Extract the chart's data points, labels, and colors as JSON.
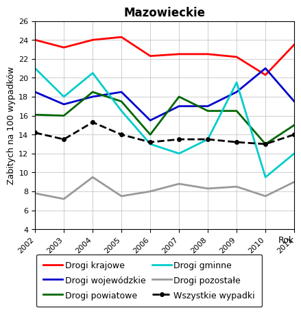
{
  "title": "Mazowieckie",
  "xlabel": "Rok",
  "ylabel": "Zabitych na 100 wypadków",
  "years": [
    2002,
    2003,
    2004,
    2005,
    2006,
    2007,
    2008,
    2009,
    2010,
    2011
  ],
  "series": {
    "Drogi krajowe": {
      "values": [
        24.0,
        23.2,
        24.0,
        24.3,
        22.3,
        22.5,
        22.5,
        22.2,
        20.3,
        23.5
      ],
      "color": "#ff0000",
      "linestyle": "-",
      "linewidth": 2.0,
      "marker": null
    },
    "Drogi wojewódzkie": {
      "values": [
        18.5,
        17.2,
        18.0,
        18.5,
        15.5,
        17.0,
        17.0,
        18.5,
        21.0,
        17.5
      ],
      "color": "#0000cc",
      "linestyle": "-",
      "linewidth": 2.0,
      "marker": null
    },
    "Drogi powiatowe": {
      "values": [
        16.1,
        16.0,
        18.5,
        17.5,
        14.0,
        18.0,
        16.5,
        16.5,
        13.0,
        15.0
      ],
      "color": "#006600",
      "linestyle": "-",
      "linewidth": 2.0,
      "marker": null
    },
    "Drogi gminne": {
      "values": [
        21.0,
        18.0,
        20.5,
        16.5,
        13.0,
        12.0,
        13.5,
        19.5,
        9.5,
        12.0
      ],
      "color": "#00cccc",
      "linestyle": "-",
      "linewidth": 2.0,
      "marker": null
    },
    "Drogi pozostałe": {
      "values": [
        7.8,
        7.2,
        9.5,
        7.5,
        8.0,
        8.8,
        8.3,
        8.5,
        7.5,
        9.0
      ],
      "color": "#999999",
      "linestyle": "-",
      "linewidth": 2.0,
      "marker": null
    },
    "Wszystkie wypadki": {
      "values": [
        14.2,
        13.5,
        15.3,
        14.0,
        13.2,
        13.5,
        13.5,
        13.2,
        13.0,
        14.0
      ],
      "color": "#000000",
      "linestyle": "--",
      "linewidth": 2.0,
      "marker": "o"
    }
  },
  "ylim": [
    4,
    26
  ],
  "yticks": [
    4,
    6,
    8,
    10,
    12,
    14,
    16,
    18,
    20,
    22,
    24,
    26
  ],
  "legend_order": [
    "Drogi krajowe",
    "Drogi wojewódzkie",
    "Drogi powiatowe",
    "Drogi gminne",
    "Drogi pozostałe",
    "Wszystkie wypadki"
  ],
  "background_color": "#ffffff",
  "title_fontsize": 12,
  "axis_label_fontsize": 9,
  "tick_fontsize": 8,
  "legend_fontsize": 9
}
